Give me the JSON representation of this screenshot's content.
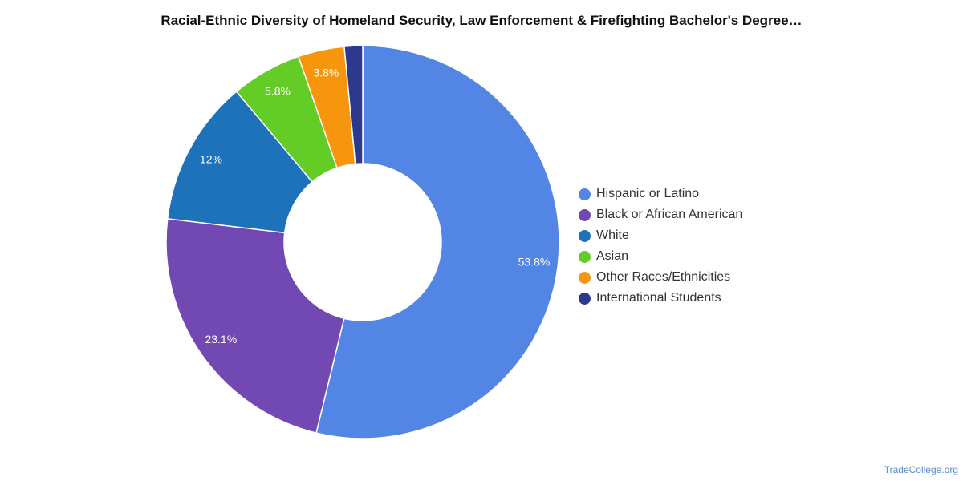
{
  "chart_data": {
    "type": "pie",
    "title": "Racial-Ethnic Diversity of Homeland Security, Law Enforcement & Firefighting Bachelor's Degree…",
    "donut": true,
    "legend_position": "right",
    "series": [
      {
        "name": "Hispanic or Latino",
        "value": 53.8,
        "label": "53.8%",
        "color": "#5386e4"
      },
      {
        "name": "Black or African American",
        "value": 23.1,
        "label": "23.1%",
        "color": "#7249b2"
      },
      {
        "name": "White",
        "value": 12.0,
        "label": "12%",
        "color": "#1e72ba"
      },
      {
        "name": "Asian",
        "value": 5.8,
        "label": "5.8%",
        "color": "#63cc27"
      },
      {
        "name": "Other Races/Ethnicities",
        "value": 3.8,
        "label": "3.8%",
        "color": "#f7950d"
      },
      {
        "name": "International Students",
        "value": 1.5,
        "label": "",
        "color": "#2b3a8c"
      }
    ]
  },
  "source": "TradeCollege.org"
}
